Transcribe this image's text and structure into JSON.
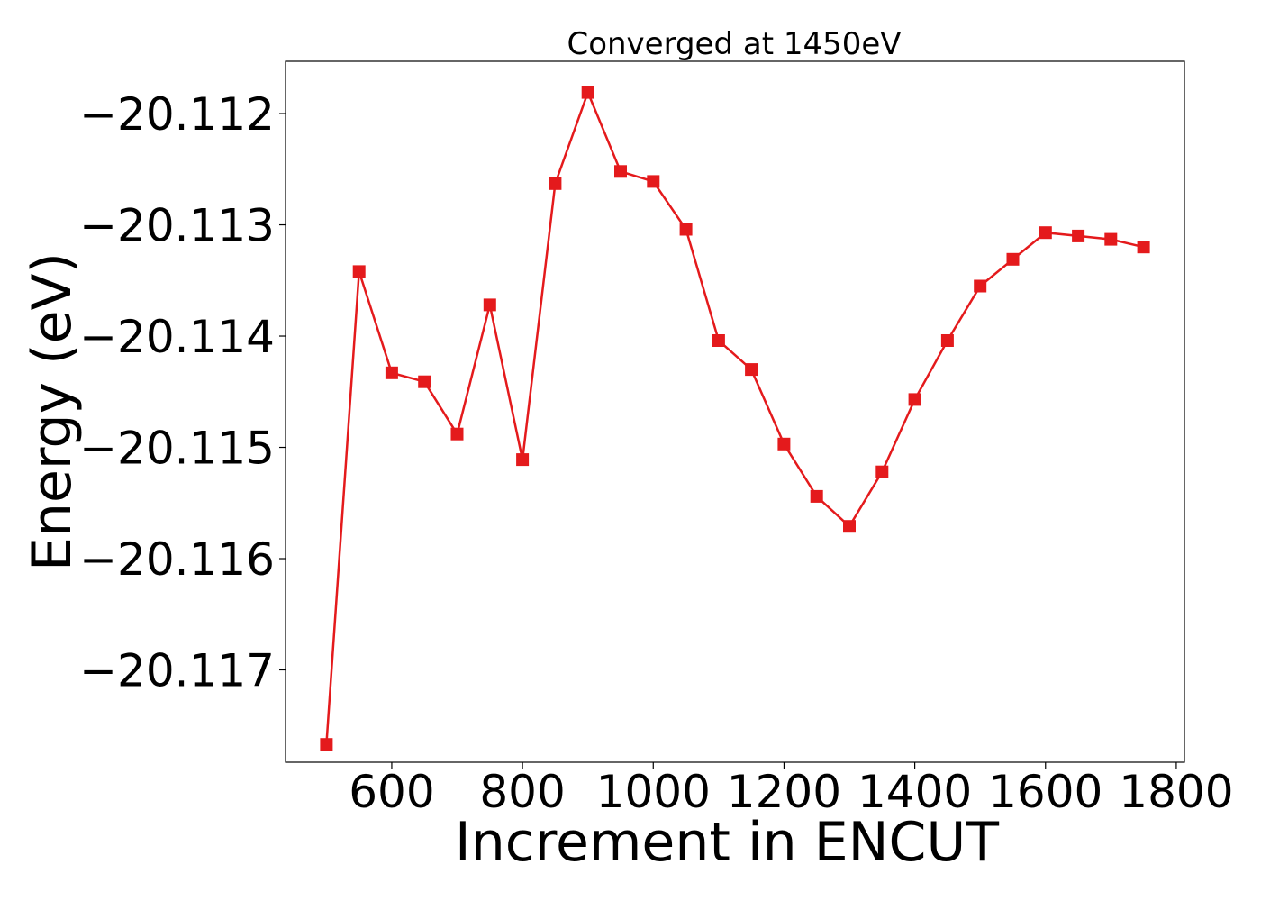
{
  "chart_data": {
    "type": "line",
    "title": "Converged at 1450eV",
    "xlabel": "Increment in ENCUT",
    "ylabel": "Energy (eV)",
    "x_ticks": [
      600,
      800,
      1000,
      1200,
      1400,
      1600,
      1800
    ],
    "y_ticks": [
      -20.112,
      -20.113,
      -20.114,
      -20.115,
      -20.116,
      -20.117
    ],
    "y_tick_labels": [
      "−20.112",
      "−20.113",
      "−20.114",
      "−20.115",
      "−20.116",
      "−20.117"
    ],
    "xlim": [
      437.5,
      1812.5
    ],
    "ylim": [
      -20.11783,
      -20.11153
    ],
    "grid": false,
    "marker": "square",
    "color": "#e41a1c",
    "series": [
      {
        "x": [
          500,
          550,
          600,
          650,
          700,
          750,
          800,
          850,
          900,
          950,
          1000,
          1050,
          1100,
          1150,
          1200,
          1250,
          1300,
          1350,
          1400,
          1450,
          1500,
          1550,
          1600,
          1650,
          1700,
          1750
        ],
        "y": [
          -20.11767,
          -20.11342,
          -20.11433,
          -20.11441,
          -20.11488,
          -20.11372,
          -20.11511,
          -20.11263,
          -20.11181,
          -20.11252,
          -20.11261,
          -20.11304,
          -20.11404,
          -20.1143,
          -20.11497,
          -20.11544,
          -20.11571,
          -20.11522,
          -20.11457,
          -20.11404,
          -20.11355,
          -20.11331,
          -20.11307,
          -20.1131,
          -20.11313,
          -20.1132
        ]
      }
    ]
  }
}
